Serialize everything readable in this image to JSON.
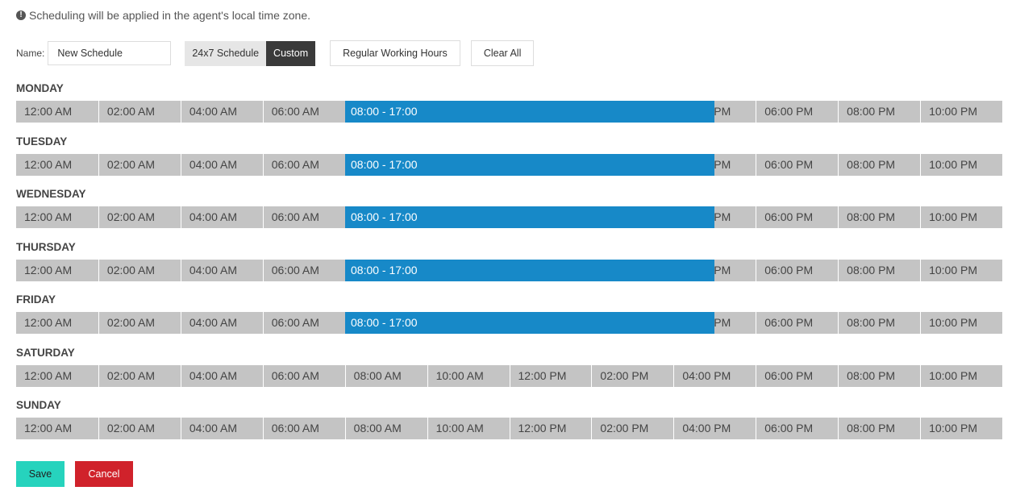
{
  "notice": {
    "icon": "exclamation-info-icon",
    "text": "Scheduling will be applied in the agent's local time zone."
  },
  "toolbar": {
    "name_label": "Name:",
    "name_value": "New Schedule",
    "mode_24x7": "24x7 Schedule",
    "mode_custom": "Custom",
    "selected_mode": "Custom",
    "regular_hours": "Regular Working Hours",
    "clear_all": "Clear All"
  },
  "time_slots": [
    "12:00 AM",
    "02:00 AM",
    "04:00 AM",
    "06:00 AM",
    "08:00 AM",
    "10:00 AM",
    "12:00 PM",
    "02:00 PM",
    "04:00 PM",
    "06:00 PM",
    "08:00 PM",
    "10:00 PM"
  ],
  "days": [
    {
      "name": "MONDAY",
      "shift": "08:00 - 17:00"
    },
    {
      "name": "TUESDAY",
      "shift": "08:00 - 17:00"
    },
    {
      "name": "WEDNESDAY",
      "shift": "08:00 - 17:00"
    },
    {
      "name": "THURSDAY",
      "shift": "08:00 - 17:00"
    },
    {
      "name": "FRIDAY",
      "shift": "08:00 - 17:00"
    },
    {
      "name": "SATURDAY",
      "shift": null
    },
    {
      "name": "SUNDAY",
      "shift": null
    }
  ],
  "actions": {
    "save": "Save",
    "cancel": "Cancel"
  },
  "colors": {
    "shift": "#1789c8",
    "track": "#c4c4c4",
    "save": "#26d3bd",
    "cancel": "#d0222b",
    "selected_mode": "#3a3a3a"
  }
}
